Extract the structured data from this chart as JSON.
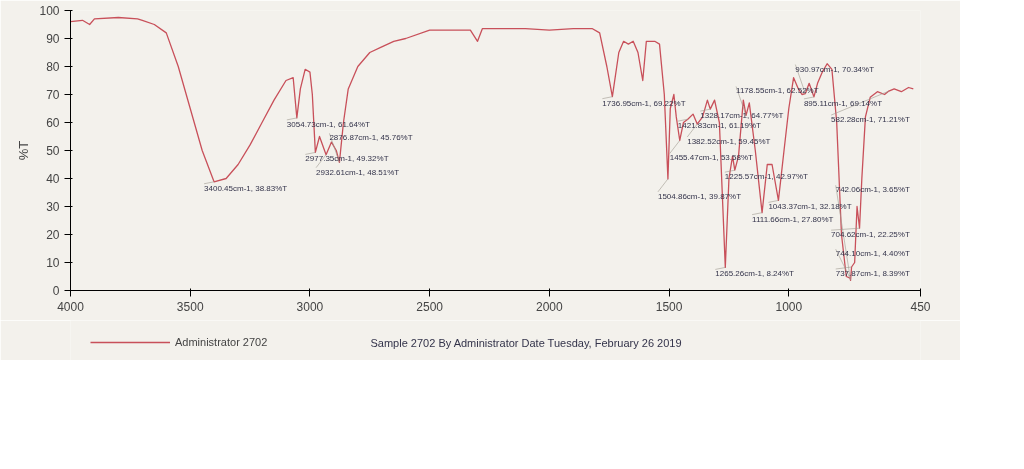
{
  "chart_data": {
    "type": "line",
    "ylabel": "%T",
    "xlim": [
      4000,
      450
    ],
    "xticks": [
      4000,
      3500,
      3000,
      2500,
      2000,
      1500,
      1000,
      450
    ],
    "ylim": [
      0,
      100
    ],
    "yticks": [
      0,
      10,
      20,
      30,
      40,
      50,
      60,
      70,
      80,
      90,
      100
    ],
    "grid": false,
    "legend": "bottom",
    "marker": "none",
    "line_style": "solid",
    "series": [
      {
        "name": "Administrator 2702",
        "color": "#c8505a",
        "x": [
          4000,
          3950,
          3920,
          3900,
          3800,
          3720,
          3700,
          3650,
          3600,
          3550,
          3500,
          3450,
          3400.45,
          3350,
          3300,
          3250,
          3200,
          3150,
          3100,
          3070,
          3054.73,
          3040,
          3020,
          3000,
          2990,
          2977.35,
          2960,
          2932.61,
          2910,
          2890,
          2876.87,
          2860,
          2840,
          2800,
          2750,
          2700,
          2650,
          2600,
          2500,
          2400,
          2330,
          2300,
          2280,
          2200,
          2100,
          2000,
          1900,
          1820,
          1790,
          1760,
          1736.95,
          1710,
          1690,
          1670,
          1650,
          1630,
          1610,
          1595,
          1560,
          1540,
          1520,
          1504.86,
          1495,
          1480,
          1470,
          1455.47,
          1440,
          1421.83,
          1400,
          1382.52,
          1360,
          1340,
          1328.17,
          1310,
          1290,
          1265.26,
          1250,
          1235,
          1225.57,
          1210,
          1190,
          1178.55,
          1165,
          1140,
          1111.66,
          1090,
          1070,
          1043.37,
          1020,
          1000,
          980,
          960,
          945,
          930.97,
          915,
          895.11,
          880,
          860,
          840,
          820,
          800,
          780,
          760,
          744.1,
          742.06,
          737.87,
          725,
          715,
          704.62,
          695,
          680,
          660,
          630,
          600,
          582.28,
          560,
          530,
          500,
          480
        ],
        "values": [
          96,
          96.5,
          95,
          97,
          97.5,
          97,
          96.5,
          95,
          92,
          80,
          65,
          50,
          38.83,
          40,
          45,
          52,
          60,
          68,
          75,
          76,
          61.64,
          72,
          79,
          78,
          70,
          49.32,
          55,
          48.51,
          53,
          50,
          45.76,
          60,
          72,
          80,
          85,
          87,
          89,
          90,
          93,
          93,
          93,
          89,
          93.5,
          93.5,
          93.5,
          93,
          93.5,
          93.5,
          92,
          80,
          69.22,
          85,
          89,
          88,
          89,
          85,
          75,
          89,
          89,
          88,
          70,
          39.87,
          65,
          70,
          62,
          53.58,
          60,
          61.19,
          63,
          59.45,
          62,
          68,
          64.77,
          68,
          60,
          8.24,
          40,
          48,
          42.97,
          48,
          68,
          62.52,
          67,
          50,
          27.8,
          45,
          45,
          32.18,
          50,
          65,
          76,
          72,
          70,
          70.34,
          74,
          69.14,
          74,
          78,
          81,
          79,
          60,
          20,
          5,
          4.4,
          3.65,
          8.39,
          10,
          30,
          22.25,
          40,
          62,
          69,
          71,
          70,
          71.21,
          72,
          71,
          72.5,
          72
        ]
      }
    ],
    "annotations": [
      {
        "text": "3400.45cm-1, 38.83%T",
        "x": 3400.45,
        "y": 38.83
      },
      {
        "text": "3054.73cm-1, 61.64%T",
        "x": 3054.73,
        "y": 61.64
      },
      {
        "text": "2977.35cm-1, 49.32%T",
        "x": 2977.35,
        "y": 49.32
      },
      {
        "text": "2932.61cm-1, 48.51%T",
        "x": 2932.61,
        "y": 48.51
      },
      {
        "text": "2876.87cm-1, 45.76%T",
        "x": 2876.87,
        "y": 45.76
      },
      {
        "text": "1736.95cm-1, 69.22%T",
        "x": 1736.95,
        "y": 69.22
      },
      {
        "text": "1328.17cm-1, 64.77%T",
        "x": 1328.17,
        "y": 64.77
      },
      {
        "text": "1421.83cm-1, 61.19%T",
        "x": 1421.83,
        "y": 61.19
      },
      {
        "text": "1382.52cm-1, 59.45%T",
        "x": 1382.52,
        "y": 59.45
      },
      {
        "text": "1178.55cm-1, 62.52%T",
        "x": 1178.55,
        "y": 62.52
      },
      {
        "text": "1455.47cm-1, 53.58%T",
        "x": 1455.47,
        "y": 53.58
      },
      {
        "text": "1225.57cm-1, 42.97%T",
        "x": 1225.57,
        "y": 42.97
      },
      {
        "text": "1504.86cm-1, 39.87%T",
        "x": 1504.86,
        "y": 39.87
      },
      {
        "text": "1043.37cm-1, 32.18%T",
        "x": 1043.37,
        "y": 32.18
      },
      {
        "text": "1111.66cm-1, 27.80%T",
        "x": 1111.66,
        "y": 27.8
      },
      {
        "text": "895.11cm-1, 69.14%T",
        "x": 895.11,
        "y": 69.14
      },
      {
        "text": "930.97cm-1, 70.34%T",
        "x": 930.97,
        "y": 70.34
      },
      {
        "text": "582.28cm-1, 71.21%T",
        "x": 582.28,
        "y": 71.21
      },
      {
        "text": "704.62cm-1, 22.25%T",
        "x": 704.62,
        "y": 22.25
      },
      {
        "text": "1265.26cm-1, 8.24%T",
        "x": 1265.26,
        "y": 8.24
      },
      {
        "text": "744.10cm-1, 4.40%T",
        "x": 744.1,
        "y": 4.4
      },
      {
        "text": "742.06cm-1, 3.65%T",
        "x": 742.06,
        "y": 3.65
      },
      {
        "text": "737.87cm-1, 8.39%T",
        "x": 737.87,
        "y": 8.39
      },
      "Sample 2702 By Administrator Date Tuesday, February 26 2019"
    ]
  }
}
